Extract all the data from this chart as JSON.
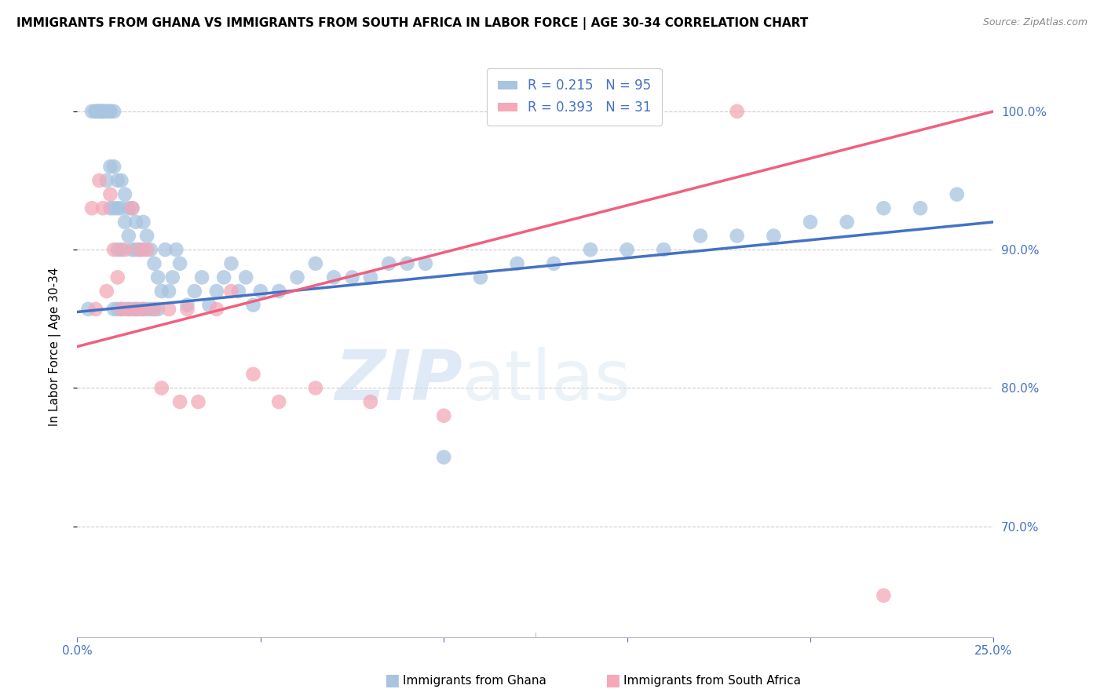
{
  "title": "IMMIGRANTS FROM GHANA VS IMMIGRANTS FROM SOUTH AFRICA IN LABOR FORCE | AGE 30-34 CORRELATION CHART",
  "source": "Source: ZipAtlas.com",
  "ylabel": "In Labor Force | Age 30-34",
  "xlim": [
    0.0,
    0.25
  ],
  "ylim": [
    0.62,
    1.04
  ],
  "ghana_R": 0.215,
  "ghana_N": 95,
  "sa_R": 0.393,
  "sa_N": 31,
  "ghana_color": "#a8c4e0",
  "sa_color": "#f4a8b8",
  "ghana_line_color": "#4472c4",
  "sa_line_color": "#f06080",
  "legend_text_color": "#4472c4",
  "right_axis_color": "#4472c4",
  "ghana_x": [
    0.003,
    0.004,
    0.005,
    0.005,
    0.006,
    0.006,
    0.006,
    0.007,
    0.007,
    0.007,
    0.008,
    0.008,
    0.008,
    0.009,
    0.009,
    0.009,
    0.009,
    0.01,
    0.01,
    0.01,
    0.01,
    0.011,
    0.011,
    0.011,
    0.011,
    0.012,
    0.012,
    0.012,
    0.012,
    0.013,
    0.013,
    0.013,
    0.014,
    0.014,
    0.014,
    0.015,
    0.015,
    0.015,
    0.016,
    0.016,
    0.016,
    0.017,
    0.017,
    0.018,
    0.018,
    0.018,
    0.019,
    0.019,
    0.02,
    0.02,
    0.021,
    0.021,
    0.022,
    0.022,
    0.023,
    0.024,
    0.025,
    0.026,
    0.027,
    0.028,
    0.03,
    0.032,
    0.034,
    0.036,
    0.038,
    0.04,
    0.042,
    0.044,
    0.046,
    0.048,
    0.05,
    0.055,
    0.06,
    0.065,
    0.07,
    0.075,
    0.08,
    0.085,
    0.09,
    0.095,
    0.1,
    0.11,
    0.12,
    0.13,
    0.14,
    0.15,
    0.16,
    0.17,
    0.18,
    0.19,
    0.2,
    0.21,
    0.22,
    0.23,
    0.24
  ],
  "ghana_y": [
    0.857,
    1.0,
    1.0,
    1.0,
    1.0,
    1.0,
    1.0,
    1.0,
    1.0,
    1.0,
    1.0,
    1.0,
    0.95,
    1.0,
    1.0,
    0.96,
    0.93,
    1.0,
    0.96,
    0.93,
    0.857,
    0.95,
    0.93,
    0.9,
    0.857,
    0.95,
    0.93,
    0.9,
    0.857,
    0.94,
    0.92,
    0.857,
    0.93,
    0.91,
    0.857,
    0.93,
    0.9,
    0.857,
    0.92,
    0.9,
    0.857,
    0.9,
    0.857,
    0.92,
    0.9,
    0.857,
    0.91,
    0.857,
    0.9,
    0.857,
    0.89,
    0.857,
    0.88,
    0.857,
    0.87,
    0.9,
    0.87,
    0.88,
    0.9,
    0.89,
    0.86,
    0.87,
    0.88,
    0.86,
    0.87,
    0.88,
    0.89,
    0.87,
    0.88,
    0.86,
    0.87,
    0.87,
    0.88,
    0.89,
    0.88,
    0.88,
    0.88,
    0.89,
    0.89,
    0.89,
    0.75,
    0.88,
    0.89,
    0.89,
    0.9,
    0.9,
    0.9,
    0.91,
    0.91,
    0.91,
    0.92,
    0.92,
    0.93,
    0.93,
    0.94
  ],
  "sa_x": [
    0.004,
    0.005,
    0.006,
    0.007,
    0.008,
    0.009,
    0.01,
    0.011,
    0.012,
    0.013,
    0.014,
    0.015,
    0.016,
    0.017,
    0.018,
    0.019,
    0.021,
    0.023,
    0.025,
    0.028,
    0.03,
    0.033,
    0.038,
    0.042,
    0.048,
    0.055,
    0.065,
    0.08,
    0.1,
    0.18,
    0.22
  ],
  "sa_y": [
    0.93,
    0.857,
    0.95,
    0.93,
    0.87,
    0.94,
    0.9,
    0.88,
    0.857,
    0.9,
    0.857,
    0.93,
    0.857,
    0.9,
    0.857,
    0.9,
    0.857,
    0.8,
    0.857,
    0.79,
    0.857,
    0.79,
    0.857,
    0.87,
    0.81,
    0.79,
    0.8,
    0.79,
    0.78,
    1.0,
    0.65
  ]
}
